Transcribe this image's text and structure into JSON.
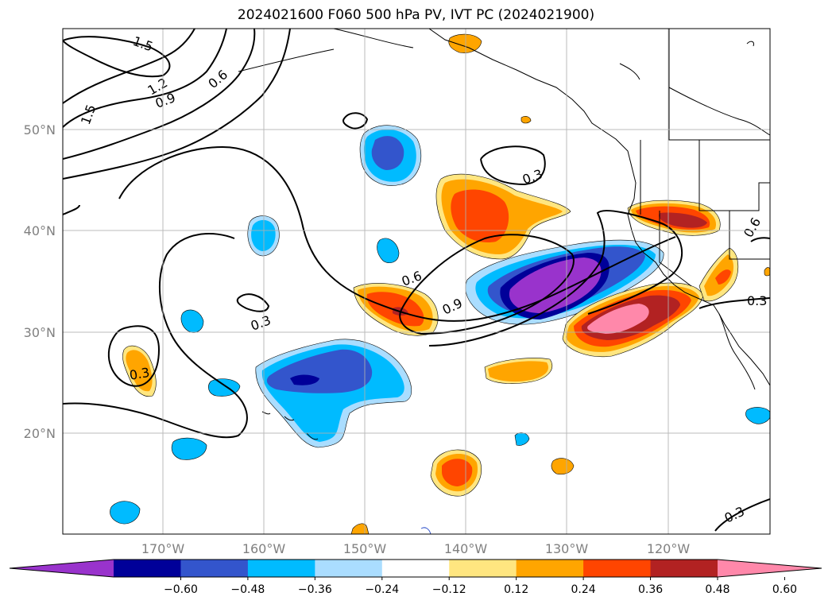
{
  "title": "2024021600 F060 500 hPa PV, IVT PC (2024021900)",
  "lon_labels": [
    "170°W",
    "160°W",
    "150°W",
    "140°W",
    "130°W",
    "120°W"
  ],
  "lat_labels": [
    "50°N",
    "40°N",
    "30°N",
    "20°N"
  ],
  "colorbar": {
    "colors": [
      "#9933cc",
      "#000099",
      "#3355cc",
      "#00bbff",
      "#aaddff",
      "#ffffff",
      "#ffe680",
      "#ffa500",
      "#ff4500",
      "#b22222",
      "#ff88aa"
    ],
    "tick_labels": [
      "−0.60",
      "−0.48",
      "−0.36",
      "−0.24",
      "−0.12",
      "0.12",
      "0.24",
      "0.36",
      "0.48",
      "0.60"
    ]
  },
  "contour_labels": [
    "1.5",
    "1.2",
    "0.9",
    "0.6",
    "1.5",
    "0.3",
    "0.3",
    "0.6",
    "0.9",
    "0.3",
    "0.6",
    "0.3",
    "0.3"
  ],
  "map_extent": {
    "lon": [
      -180,
      -110
    ],
    "lat": [
      10,
      60
    ]
  }
}
